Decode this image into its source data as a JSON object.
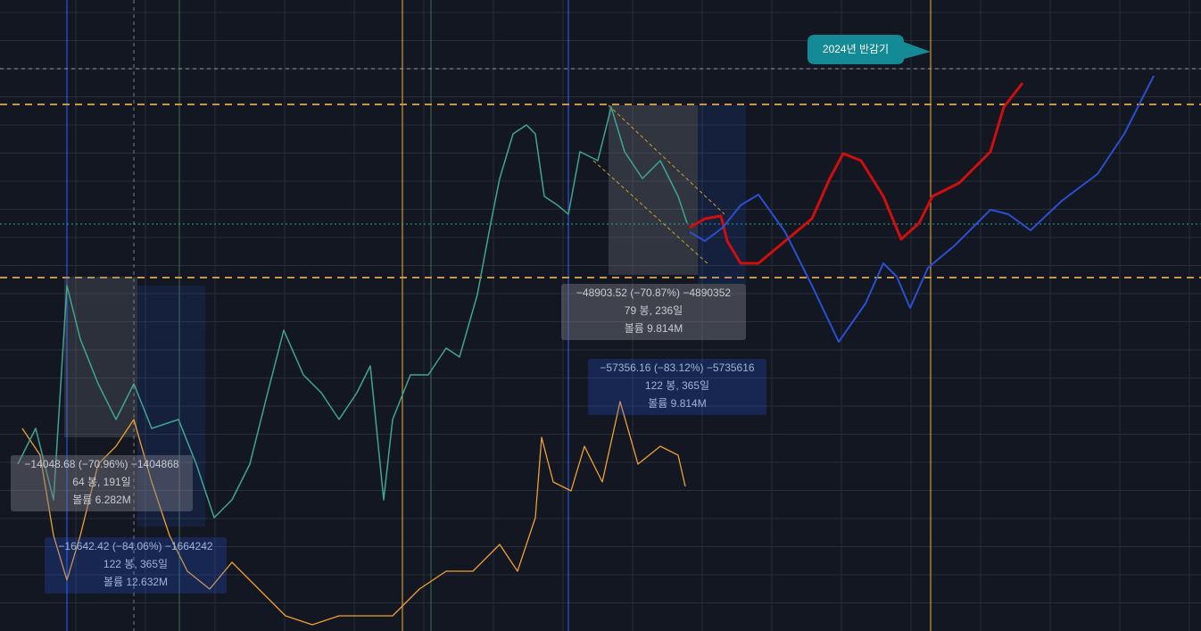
{
  "halving_label": "2024년 반감기",
  "measurements": [
    {
      "lines": [
        "−48903.52 (−70.87%) −4890352",
        "79 봉, 236일",
        "볼륨 9.814M"
      ]
    },
    {
      "lines": [
        "−57356.16 (−83.12%) −5735616",
        "122 봉, 365일",
        "볼륨 9.814M"
      ]
    },
    {
      "lines": [
        "−14048.68 (−70.96%) −1404868",
        "64 봉, 191일",
        "볼륨 6.282M"
      ]
    },
    {
      "lines": [
        "−16642.42 (−84.06%) −1664242",
        "122 봉, 365일",
        "볼륨 12.632M"
      ]
    }
  ]
}
